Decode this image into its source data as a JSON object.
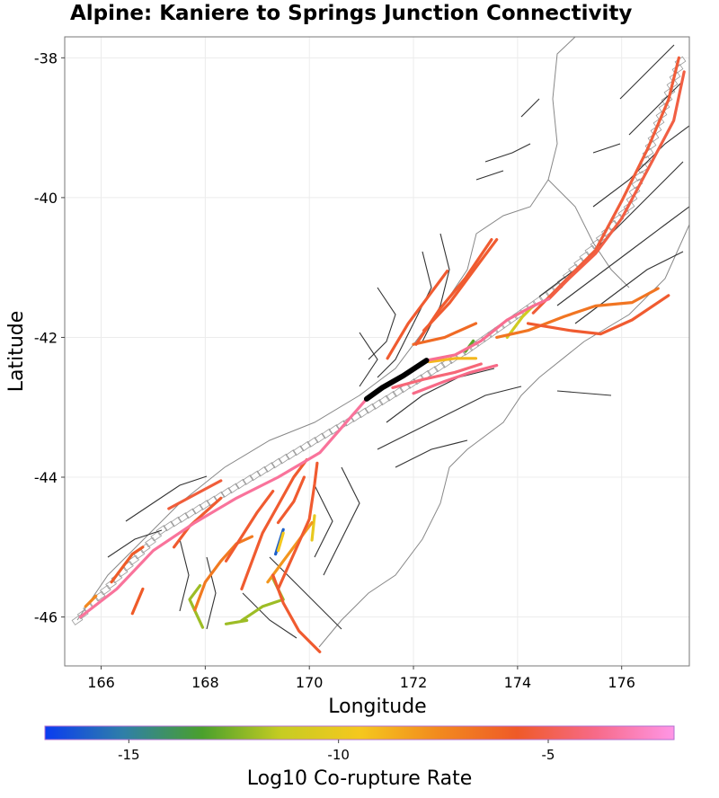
{
  "title": "Alpine: Kaniere to Springs Junction Connectivity",
  "chart_data": {
    "type": "map",
    "title": "Alpine: Kaniere to Springs Junction Connectivity",
    "xlabel": "Longitude",
    "ylabel": "Latitude",
    "xlim": [
      165.3,
      177.3
    ],
    "ylim": [
      -46.7,
      -37.7
    ],
    "x_ticks": [
      166,
      168,
      170,
      172,
      174,
      176
    ],
    "y_ticks": [
      -38,
      -40,
      -42,
      -44,
      -46
    ],
    "source_section": {
      "name": "Alpine: Kaniere to Springs Junction",
      "color": "#000000",
      "points": [
        [
          171.1,
          -42.88
        ],
        [
          171.4,
          -42.72
        ],
        [
          171.8,
          -42.55
        ],
        [
          172.25,
          -42.33
        ]
      ]
    },
    "colorbar": {
      "label": "Log10 Co-rupture Rate",
      "range": [
        -17,
        -2
      ],
      "ticks": [
        -15,
        -10,
        -5
      ],
      "colors": [
        "#0a3cf0",
        "#2f7fa8",
        "#4aa02c",
        "#c6cc22",
        "#f5c81e",
        "#f28a1e",
        "#ef5a28",
        "#f76a88",
        "#ff96e6"
      ]
    },
    "ruptures": [
      {
        "log10_rate": -3.5,
        "points": [
          [
            165.6,
            -46.0
          ],
          [
            166.3,
            -45.6
          ],
          [
            167.0,
            -45.05
          ],
          [
            167.8,
            -44.65
          ],
          [
            168.6,
            -44.3
          ],
          [
            169.4,
            -44.0
          ],
          [
            170.2,
            -43.65
          ],
          [
            171.1,
            -42.88
          ]
        ]
      },
      {
        "log10_rate": -3.7,
        "points": [
          [
            172.25,
            -42.33
          ],
          [
            172.8,
            -42.25
          ],
          [
            173.3,
            -42.05
          ],
          [
            173.8,
            -41.75
          ],
          [
            174.3,
            -41.55
          ],
          [
            174.6,
            -41.45
          ]
        ]
      },
      {
        "log10_rate": -3.9,
        "points": [
          [
            172.0,
            -42.8
          ],
          [
            172.6,
            -42.63
          ],
          [
            173.1,
            -42.5
          ],
          [
            173.6,
            -42.4
          ]
        ]
      },
      {
        "log10_rate": -4.2,
        "points": [
          [
            171.6,
            -42.72
          ],
          [
            172.2,
            -42.6
          ],
          [
            172.8,
            -42.5
          ],
          [
            173.3,
            -42.38
          ]
        ]
      },
      {
        "log10_rate": -5.2,
        "points": [
          [
            174.6,
            -41.45
          ],
          [
            175.0,
            -41.15
          ],
          [
            175.5,
            -40.8
          ],
          [
            176.0,
            -40.3
          ],
          [
            176.5,
            -39.6
          ],
          [
            177.0,
            -38.9
          ],
          [
            177.2,
            -38.2
          ]
        ]
      },
      {
        "log10_rate": -5.4,
        "points": [
          [
            174.3,
            -41.65
          ],
          [
            174.9,
            -41.2
          ],
          [
            175.5,
            -40.75
          ],
          [
            176.0,
            -40.05
          ],
          [
            176.5,
            -39.3
          ],
          [
            176.9,
            -38.6
          ],
          [
            177.1,
            -38.0
          ]
        ]
      },
      {
        "log10_rate": -5.6,
        "points": [
          [
            174.2,
            -41.8
          ],
          [
            175.0,
            -41.9
          ],
          [
            175.6,
            -41.95
          ],
          [
            176.2,
            -41.75
          ],
          [
            176.9,
            -41.4
          ]
        ]
      },
      {
        "log10_rate": -5.6,
        "points": [
          [
            172.05,
            -42.1
          ],
          [
            172.5,
            -41.6
          ],
          [
            173.0,
            -41.15
          ],
          [
            173.5,
            -40.6
          ]
        ]
      },
      {
        "log10_rate": -5.6,
        "points": [
          [
            171.5,
            -42.3
          ],
          [
            171.9,
            -41.8
          ],
          [
            172.3,
            -41.4
          ],
          [
            172.65,
            -41.05
          ]
        ]
      },
      {
        "log10_rate": -5.6,
        "points": [
          [
            172.2,
            -41.9
          ],
          [
            172.7,
            -41.5
          ],
          [
            173.2,
            -41.0
          ],
          [
            173.6,
            -40.6
          ]
        ]
      },
      {
        "log10_rate": -5.4,
        "points": [
          [
            167.3,
            -44.45
          ],
          [
            167.8,
            -44.25
          ],
          [
            168.3,
            -44.05
          ]
        ]
      },
      {
        "log10_rate": -5.6,
        "points": [
          [
            167.4,
            -45.0
          ],
          [
            167.7,
            -44.7
          ],
          [
            168.0,
            -44.5
          ],
          [
            168.3,
            -44.3
          ]
        ]
      },
      {
        "log10_rate": -5.6,
        "points": [
          [
            168.7,
            -45.6
          ],
          [
            168.9,
            -45.2
          ],
          [
            169.1,
            -44.8
          ],
          [
            169.4,
            -44.4
          ],
          [
            169.7,
            -44.0
          ],
          [
            169.95,
            -43.75
          ]
        ]
      },
      {
        "log10_rate": -5.6,
        "points": [
          [
            168.4,
            -45.2
          ],
          [
            168.7,
            -44.85
          ],
          [
            169.0,
            -44.5
          ],
          [
            169.3,
            -44.2
          ]
        ]
      },
      {
        "log10_rate": -5.6,
        "points": [
          [
            169.4,
            -44.65
          ],
          [
            169.7,
            -44.35
          ],
          [
            169.9,
            -44.0
          ]
        ]
      },
      {
        "log10_rate": -5.6,
        "points": [
          [
            169.4,
            -45.6
          ],
          [
            169.7,
            -45.1
          ],
          [
            170.0,
            -44.6
          ],
          [
            170.1,
            -44.1
          ],
          [
            170.15,
            -43.8
          ]
        ]
      },
      {
        "log10_rate": -5.6,
        "points": [
          [
            169.3,
            -45.4
          ],
          [
            169.5,
            -45.8
          ],
          [
            169.8,
            -46.2
          ],
          [
            170.2,
            -46.5
          ]
        ]
      },
      {
        "log10_rate": -5.8,
        "points": [
          [
            166.2,
            -45.5
          ],
          [
            166.6,
            -45.1
          ],
          [
            166.8,
            -45.0
          ]
        ]
      },
      {
        "log10_rate": -5.8,
        "points": [
          [
            166.6,
            -45.95
          ],
          [
            166.8,
            -45.6
          ]
        ]
      },
      {
        "log10_rate": -6.4,
        "points": [
          [
            172.0,
            -42.1
          ],
          [
            172.6,
            -42.0
          ],
          [
            173.2,
            -41.8
          ]
        ]
      },
      {
        "log10_rate": -6.8,
        "points": [
          [
            173.6,
            -42.0
          ],
          [
            174.2,
            -41.9
          ],
          [
            174.9,
            -41.7
          ],
          [
            175.5,
            -41.55
          ],
          [
            176.2,
            -41.5
          ],
          [
            176.7,
            -41.3
          ]
        ]
      },
      {
        "log10_rate": -7.0,
        "points": [
          [
            167.8,
            -45.9
          ],
          [
            168.0,
            -45.5
          ],
          [
            168.3,
            -45.2
          ],
          [
            168.6,
            -44.95
          ],
          [
            168.9,
            -44.85
          ]
        ]
      },
      {
        "log10_rate": -7.5,
        "points": [
          [
            165.7,
            -45.85
          ],
          [
            165.9,
            -45.7
          ]
        ]
      },
      {
        "log10_rate": -8.0,
        "points": [
          [
            169.2,
            -45.5
          ],
          [
            169.5,
            -45.2
          ],
          [
            169.8,
            -44.9
          ],
          [
            170.05,
            -44.65
          ]
        ]
      },
      {
        "log10_rate": -9.0,
        "points": [
          [
            172.3,
            -42.35
          ],
          [
            172.8,
            -42.3
          ],
          [
            173.2,
            -42.3
          ]
        ]
      },
      {
        "log10_rate": -9.5,
        "points": [
          [
            169.5,
            -44.8
          ],
          [
            169.4,
            -45.05
          ]
        ]
      },
      {
        "log10_rate": -10.0,
        "points": [
          [
            170.05,
            -44.9
          ],
          [
            170.1,
            -44.55
          ]
        ]
      },
      {
        "log10_rate": -11.0,
        "points": [
          [
            173.8,
            -42.0
          ],
          [
            174.1,
            -41.7
          ],
          [
            174.3,
            -41.55
          ]
        ]
      },
      {
        "log10_rate": -12.0,
        "points": [
          [
            167.9,
            -45.55
          ],
          [
            167.7,
            -45.75
          ],
          [
            167.95,
            -46.15
          ]
        ]
      },
      {
        "log10_rate": -12.0,
        "points": [
          [
            168.7,
            -46.05
          ],
          [
            169.1,
            -45.85
          ],
          [
            169.5,
            -45.75
          ],
          [
            169.3,
            -45.45
          ]
        ]
      },
      {
        "log10_rate": -12.0,
        "points": [
          [
            168.4,
            -46.1
          ],
          [
            168.8,
            -46.05
          ]
        ]
      },
      {
        "log10_rate": -13.0,
        "points": [
          [
            173.0,
            -42.2
          ],
          [
            173.15,
            -42.05
          ]
        ]
      },
      {
        "log10_rate": -16.0,
        "points": [
          [
            169.5,
            -44.75
          ],
          [
            169.35,
            -45.1
          ]
        ]
      }
    ]
  }
}
